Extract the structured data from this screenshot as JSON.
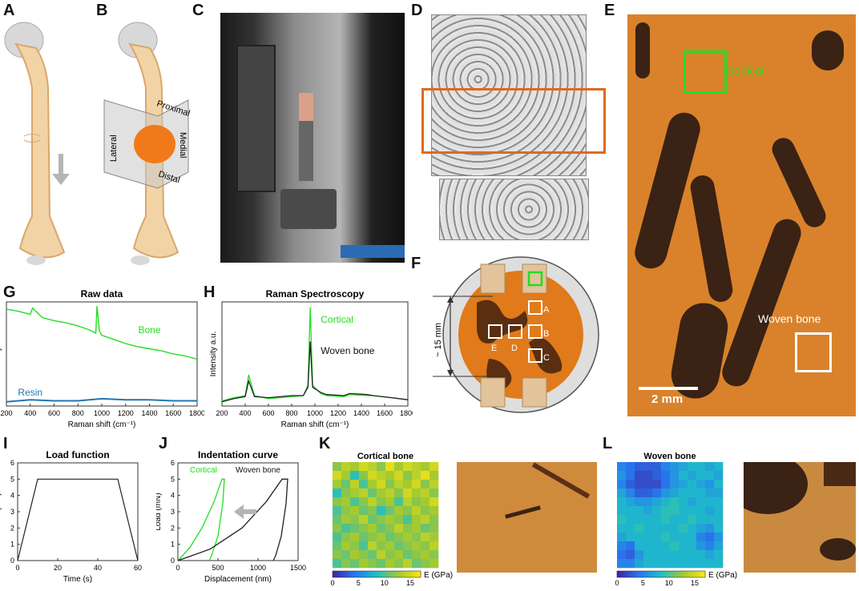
{
  "panels": {
    "A": "A",
    "B": "B",
    "C": "C",
    "D": "D",
    "E": "E",
    "F": "F",
    "G": "G",
    "H": "H",
    "I": "I",
    "J": "J",
    "K": "K",
    "L": "L"
  },
  "panel_b": {
    "proximal": "Proximal",
    "lateral": "Lateral",
    "medial": "Medial",
    "distal": "Distal"
  },
  "panel_e": {
    "cortical": "Cortical",
    "woven": "Woven bone",
    "scale": "2 mm"
  },
  "panel_f": {
    "dimension": "~ 15 mm",
    "labels": [
      "A",
      "B",
      "C",
      "D",
      "E"
    ]
  },
  "colors": {
    "bone_green": "#22dd22",
    "resin_blue": "#1f77b4",
    "bone_orange": "#d9822b",
    "roi_orange": "#e06a1a",
    "dark_bone": "#3a2214"
  },
  "chart_data": [
    {
      "id": "G",
      "type": "line",
      "title": "Raw data",
      "xlabel": "Raman shift (cm⁻¹)",
      "ylabel": "Intensity a.u.",
      "xlim": [
        200,
        1800
      ],
      "xticks": [
        200,
        400,
        600,
        800,
        1000,
        1200,
        1400,
        1600,
        1800
      ],
      "series": [
        {
          "name": "Bone",
          "color": "#22dd22",
          "x": [
            200,
            300,
            400,
            420,
            500,
            600,
            700,
            800,
            900,
            950,
            960,
            980,
            1000,
            1100,
            1200,
            1300,
            1400,
            1500,
            1600,
            1700,
            1800
          ],
          "y": [
            0.93,
            0.91,
            0.88,
            0.94,
            0.85,
            0.82,
            0.8,
            0.77,
            0.73,
            0.7,
            0.96,
            0.72,
            0.68,
            0.64,
            0.6,
            0.57,
            0.55,
            0.53,
            0.5,
            0.48,
            0.45
          ]
        },
        {
          "name": "Resin",
          "color": "#1f77b4",
          "x": [
            200,
            400,
            600,
            800,
            1000,
            1200,
            1400,
            1600,
            1800
          ],
          "y": [
            0.04,
            0.06,
            0.05,
            0.05,
            0.07,
            0.06,
            0.06,
            0.05,
            0.05
          ]
        }
      ]
    },
    {
      "id": "H",
      "type": "line",
      "title": "Raman Spectroscopy",
      "xlabel": "Raman shift (cm⁻¹)",
      "ylabel": "Intensity a.u.",
      "xlim": [
        200,
        1800
      ],
      "xticks": [
        200,
        400,
        600,
        800,
        1000,
        1200,
        1400,
        1600,
        1800
      ],
      "series": [
        {
          "name": "Cortical",
          "color": "#22dd22",
          "x": [
            200,
            300,
            400,
            430,
            480,
            600,
            800,
            900,
            940,
            960,
            980,
            1050,
            1100,
            1250,
            1300,
            1450,
            1500,
            1660,
            1800
          ],
          "y": [
            0.05,
            0.08,
            0.1,
            0.3,
            0.1,
            0.07,
            0.09,
            0.1,
            0.2,
            0.95,
            0.2,
            0.12,
            0.1,
            0.09,
            0.11,
            0.1,
            0.1,
            0.08,
            0.06
          ]
        },
        {
          "name": "Woven bone",
          "color": "#222222",
          "x": [
            200,
            300,
            400,
            430,
            480,
            600,
            800,
            900,
            940,
            960,
            980,
            1050,
            1100,
            1250,
            1300,
            1450,
            1500,
            1660,
            1800
          ],
          "y": [
            0.04,
            0.07,
            0.09,
            0.24,
            0.09,
            0.08,
            0.1,
            0.1,
            0.18,
            0.62,
            0.18,
            0.13,
            0.11,
            0.1,
            0.12,
            0.11,
            0.1,
            0.08,
            0.06
          ]
        }
      ]
    },
    {
      "id": "I",
      "type": "line",
      "title": "Load function",
      "xlabel": "Time (s)",
      "ylabel": "Load (mN)",
      "xlim": [
        0,
        60
      ],
      "ylim": [
        0,
        6
      ],
      "xticks": [
        0,
        20,
        40,
        60
      ],
      "yticks": [
        0,
        1,
        2,
        3,
        4,
        5,
        6
      ],
      "series": [
        {
          "color": "#222222",
          "x": [
            0,
            10,
            50,
            60
          ],
          "y": [
            0,
            5,
            5,
            0
          ]
        }
      ]
    },
    {
      "id": "J",
      "type": "line",
      "title": "Indentation curve",
      "xlabel": "Displacement (nm)",
      "ylabel": "Load (mN)",
      "xlim": [
        0,
        1500
      ],
      "ylim": [
        0,
        6
      ],
      "xticks": [
        0,
        500,
        1000,
        1500
      ],
      "yticks": [
        0,
        1,
        2,
        3,
        4,
        5,
        6
      ],
      "series": [
        {
          "name": "Cortical",
          "color": "#22dd22",
          "loading": {
            "x": [
              0,
              150,
              300,
              450,
              550
            ],
            "y": [
              0,
              0.8,
              2.0,
              3.6,
              5.0
            ]
          },
          "unloading": {
            "x": [
              580,
              560,
              500,
              420,
              390
            ],
            "y": [
              5.0,
              3.5,
              1.5,
              0.3,
              0
            ]
          }
        },
        {
          "name": "Woven bone",
          "color": "#222222",
          "loading": {
            "x": [
              0,
              400,
              800,
              1100,
              1300
            ],
            "y": [
              0,
              0.7,
              2.0,
              3.6,
              5.0
            ]
          },
          "unloading": {
            "x": [
              1370,
              1350,
              1290,
              1220,
              1190
            ],
            "y": [
              5.0,
              3.5,
              1.5,
              0.3,
              0
            ]
          }
        }
      ]
    },
    {
      "id": "K",
      "type": "heatmap",
      "title": "Cortical bone",
      "colorbar_label": "E (GPa)",
      "colorbar_ticks": [
        0,
        5,
        10,
        15
      ],
      "colorbar_range": [
        0,
        17
      ],
      "rows": 12,
      "cols": 12,
      "values": [
        [
          12,
          14,
          13,
          15,
          14,
          12,
          16,
          13,
          15,
          14,
          13,
          15
        ],
        [
          15,
          13,
          9,
          12,
          15,
          14,
          13,
          15,
          12,
          14,
          16,
          13
        ],
        [
          13,
          11,
          14,
          10,
          13,
          15,
          12,
          14,
          13,
          15,
          12,
          14
        ],
        [
          9,
          12,
          13,
          14,
          11,
          13,
          14,
          12,
          15,
          13,
          14,
          12
        ],
        [
          12,
          13,
          10,
          12,
          14,
          12,
          13,
          10,
          14,
          12,
          13,
          15
        ],
        [
          10,
          12,
          13,
          11,
          12,
          9,
          11,
          13,
          12,
          14,
          12,
          13
        ],
        [
          11,
          13,
          12,
          14,
          11,
          12,
          13,
          12,
          10,
          13,
          14,
          12
        ],
        [
          12,
          10,
          11,
          12,
          13,
          11,
          12,
          14,
          12,
          13,
          11,
          12
        ],
        [
          10,
          12,
          13,
          11,
          12,
          13,
          11,
          12,
          13,
          12,
          14,
          13
        ],
        [
          11,
          13,
          12,
          10,
          14,
          12,
          13,
          11,
          12,
          13,
          12,
          14
        ],
        [
          12,
          11,
          13,
          12,
          11,
          14,
          12,
          13,
          11,
          12,
          13,
          12
        ],
        [
          10,
          12,
          11,
          13,
          12,
          11,
          13,
          12,
          14,
          11,
          12,
          13
        ]
      ]
    },
    {
      "id": "L",
      "type": "heatmap",
      "title": "Woven bone",
      "colorbar_label": "E (GPa)",
      "colorbar_ticks": [
        0,
        5,
        10,
        15
      ],
      "colorbar_range": [
        0,
        17
      ],
      "rows": 12,
      "cols": 12,
      "values": [
        [
          5,
          4,
          3,
          3,
          3,
          5,
          6,
          7,
          8,
          8,
          7,
          8
        ],
        [
          6,
          4,
          2,
          2,
          3,
          4,
          6,
          8,
          7,
          8,
          8,
          7
        ],
        [
          5,
          3,
          2,
          2,
          2,
          4,
          6,
          7,
          8,
          7,
          6,
          8
        ],
        [
          7,
          5,
          3,
          3,
          4,
          6,
          7,
          8,
          8,
          8,
          7,
          7
        ],
        [
          8,
          7,
          6,
          6,
          7,
          8,
          9,
          8,
          7,
          8,
          8,
          8
        ],
        [
          8,
          8,
          8,
          7,
          8,
          9,
          9,
          8,
          8,
          8,
          7,
          8
        ],
        [
          9,
          8,
          8,
          8,
          8,
          9,
          8,
          8,
          9,
          8,
          8,
          8
        ],
        [
          8,
          8,
          9,
          8,
          8,
          8,
          8,
          9,
          8,
          7,
          6,
          8
        ],
        [
          7,
          8,
          8,
          8,
          8,
          9,
          8,
          8,
          8,
          5,
          4,
          6
        ],
        [
          5,
          4,
          8,
          8,
          8,
          8,
          9,
          8,
          8,
          6,
          5,
          7
        ],
        [
          4,
          3,
          6,
          8,
          8,
          8,
          8,
          8,
          8,
          8,
          7,
          8
        ],
        [
          5,
          5,
          7,
          8,
          8,
          8,
          8,
          8,
          8,
          8,
          8,
          8
        ]
      ]
    }
  ]
}
